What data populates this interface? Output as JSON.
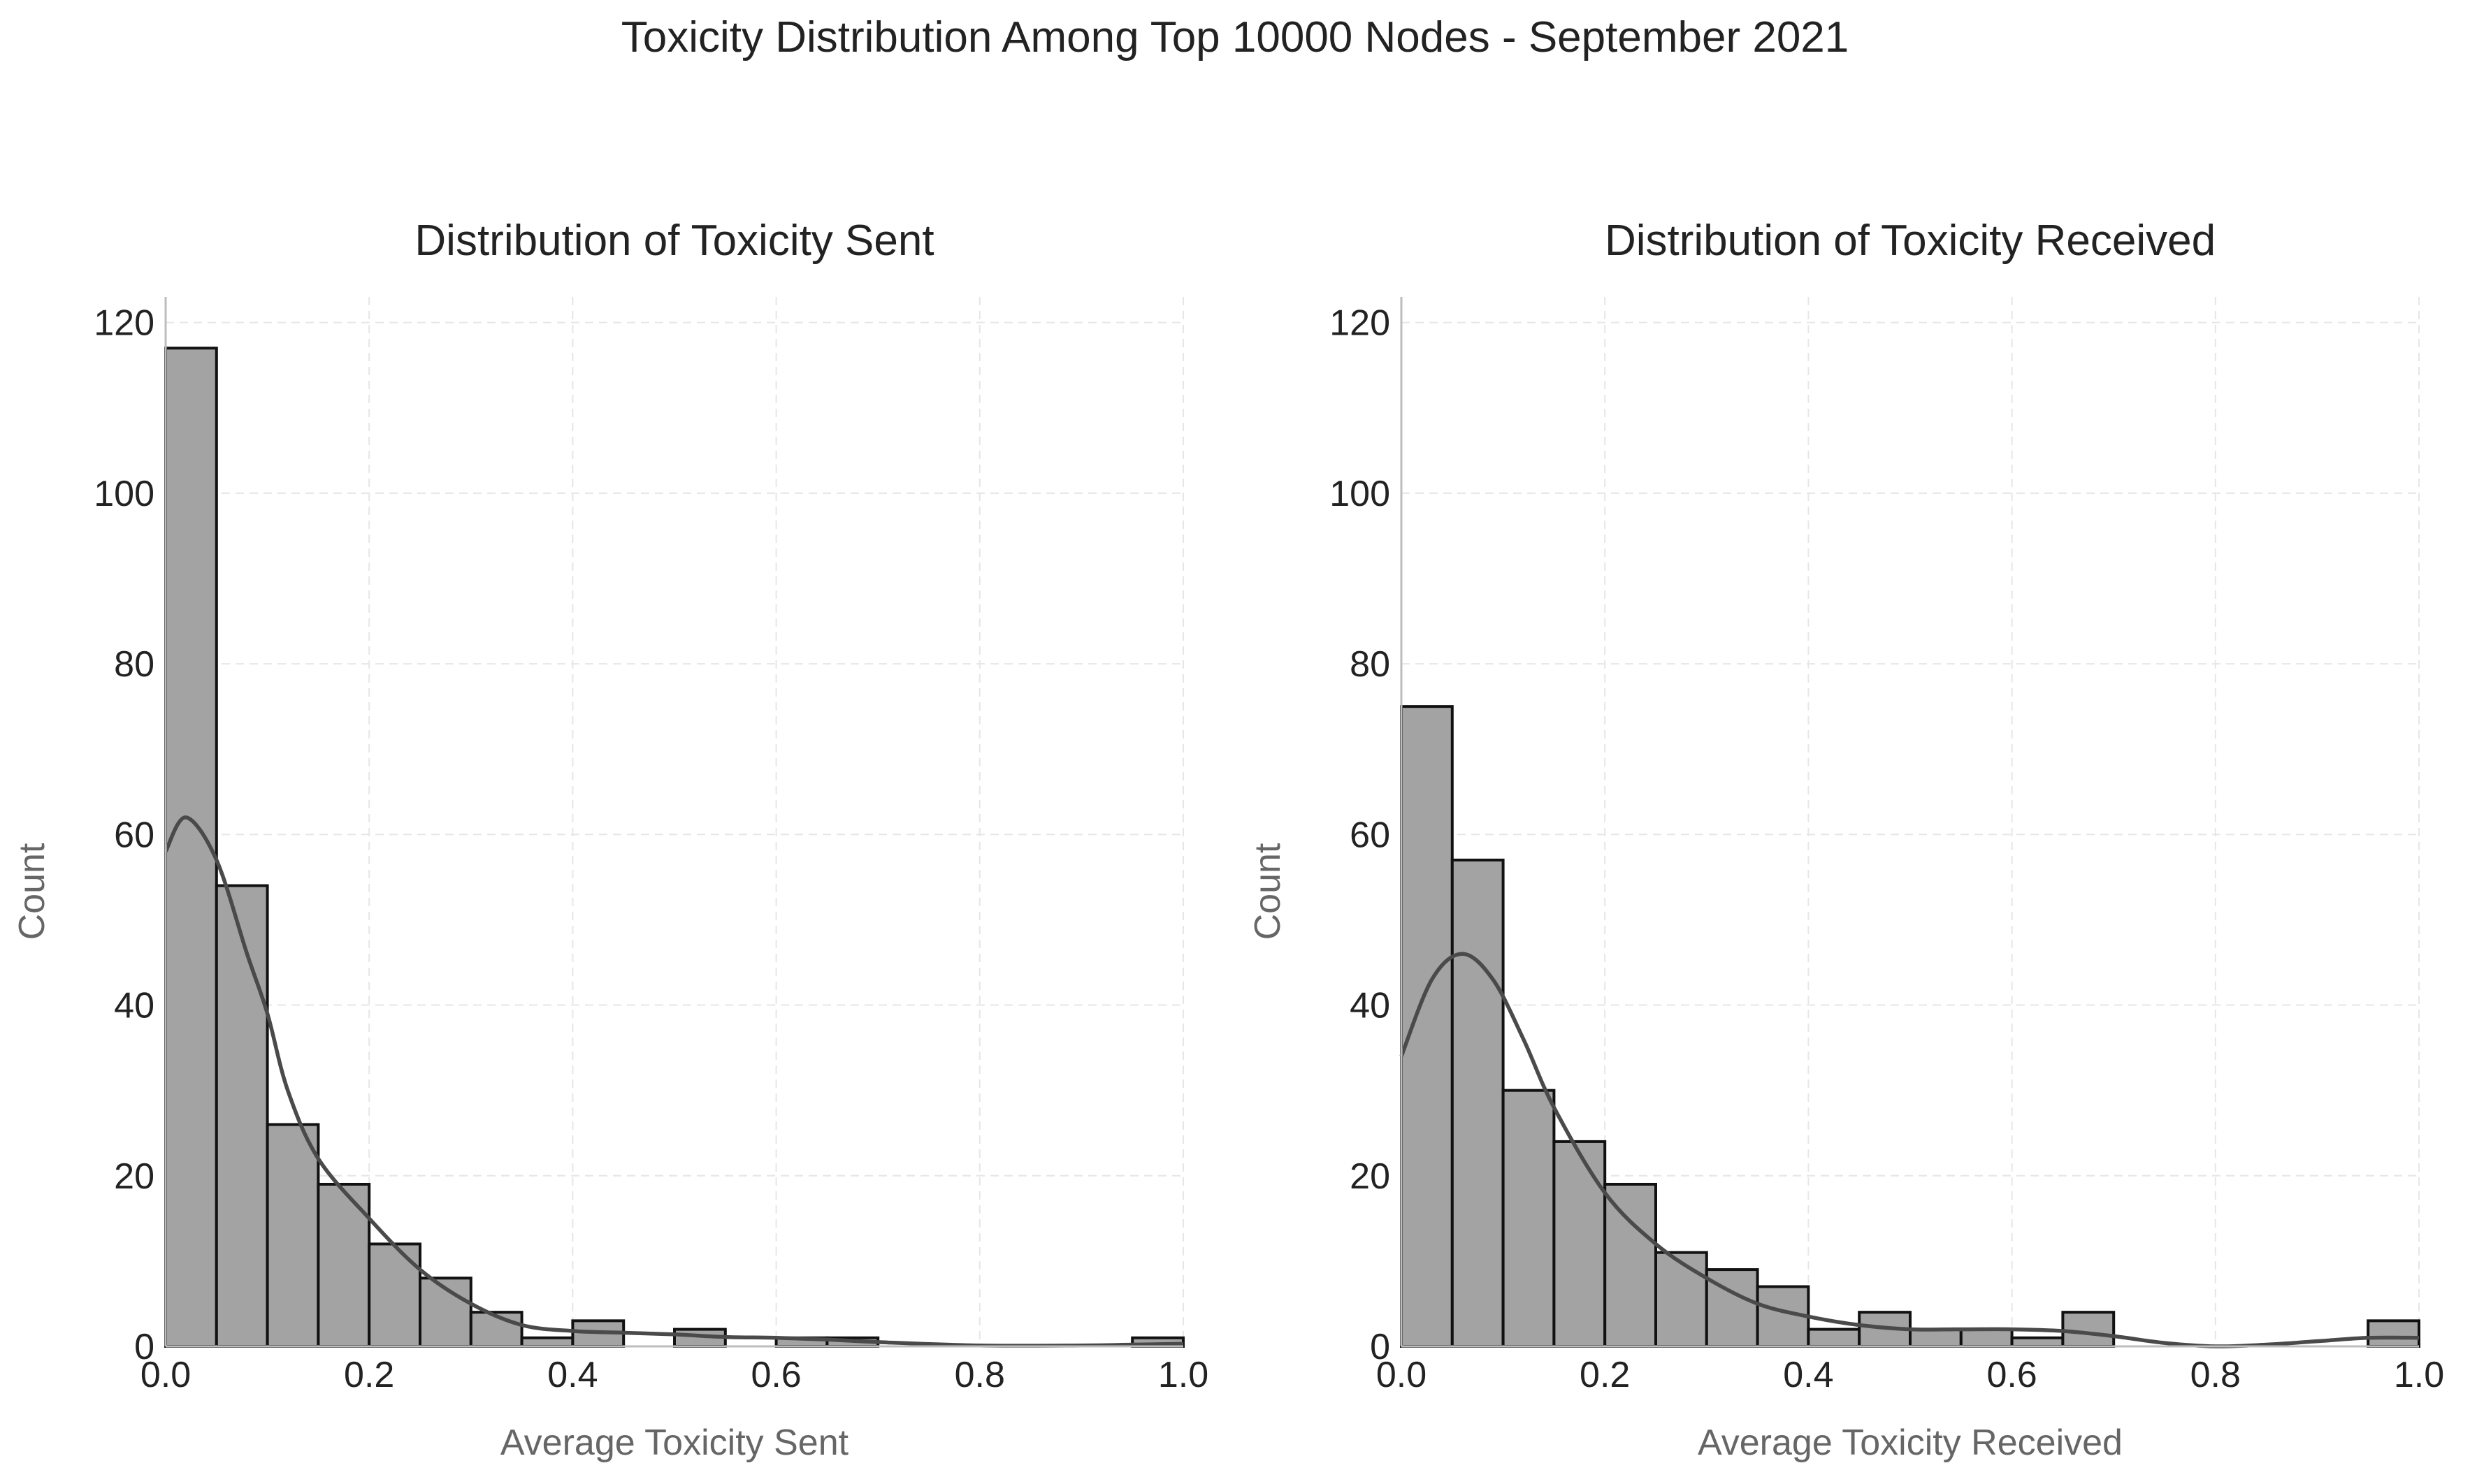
{
  "title": "Toxicity Distribution Among Top 10000 Nodes - September 2021",
  "chart_data": [
    {
      "type": "bar",
      "title": "Distribution of Toxicity Sent",
      "xlabel": "Average Toxicity Sent",
      "ylabel": "Count",
      "xlim": [
        0,
        1
      ],
      "ylim": [
        0,
        123
      ],
      "xticks": [
        "0.0",
        "0.2",
        "0.4",
        "0.6",
        "0.8",
        "1.0"
      ],
      "yticks": [
        "0",
        "20",
        "40",
        "60",
        "80",
        "100",
        "120"
      ],
      "grid": true,
      "bin_width": 0.05,
      "bins": [
        0.0,
        0.05,
        0.1,
        0.15,
        0.2,
        0.25,
        0.3,
        0.35,
        0.4,
        0.45,
        0.5,
        0.55,
        0.6,
        0.65,
        0.7,
        0.75,
        0.8,
        0.85,
        0.9,
        0.95
      ],
      "values": [
        117,
        54,
        26,
        19,
        12,
        8,
        4,
        1,
        3,
        0,
        2,
        0,
        1,
        1,
        0,
        0,
        0,
        0,
        0,
        1
      ],
      "kde": {
        "x": [
          0.0,
          0.02,
          0.05,
          0.08,
          0.1,
          0.12,
          0.15,
          0.2,
          0.25,
          0.3,
          0.35,
          0.4,
          0.45,
          0.5,
          0.55,
          0.6,
          0.65,
          0.7,
          0.8,
          0.9,
          0.95,
          1.0
        ],
        "y": [
          58,
          62,
          57,
          46,
          39,
          30,
          22,
          15,
          9,
          5,
          2.5,
          1.8,
          1.6,
          1.4,
          1.1,
          1.0,
          0.8,
          0.5,
          0.1,
          0.1,
          0.2,
          0.3
        ]
      }
    },
    {
      "type": "bar",
      "title": "Distribution of Toxicity Received",
      "xlabel": "Average Toxicity Received",
      "ylabel": "Count",
      "xlim": [
        0,
        1
      ],
      "ylim": [
        0,
        123
      ],
      "xticks": [
        "0.0",
        "0.2",
        "0.4",
        "0.6",
        "0.8",
        "1.0"
      ],
      "yticks": [
        "0",
        "20",
        "40",
        "60",
        "80",
        "100",
        "120"
      ],
      "grid": true,
      "bin_width": 0.05,
      "bins": [
        0.0,
        0.05,
        0.1,
        0.15,
        0.2,
        0.25,
        0.3,
        0.35,
        0.4,
        0.45,
        0.5,
        0.55,
        0.6,
        0.65,
        0.7,
        0.75,
        0.8,
        0.85,
        0.9,
        0.95
      ],
      "values": [
        75,
        57,
        30,
        24,
        19,
        11,
        9,
        7,
        2,
        4,
        2,
        2,
        1,
        4,
        0,
        0,
        0,
        0,
        0,
        3
      ],
      "kde": {
        "x": [
          0.0,
          0.03,
          0.06,
          0.09,
          0.12,
          0.15,
          0.2,
          0.25,
          0.3,
          0.35,
          0.4,
          0.45,
          0.5,
          0.55,
          0.6,
          0.65,
          0.7,
          0.75,
          0.8,
          0.85,
          0.9,
          0.95,
          1.0
        ],
        "y": [
          34,
          43,
          46,
          43,
          36,
          28,
          18,
          12,
          8,
          5,
          3.5,
          2.5,
          2.0,
          2.0,
          2.0,
          1.8,
          1.2,
          0.4,
          0.0,
          0.2,
          0.6,
          1.0,
          1.0
        ]
      }
    }
  ]
}
